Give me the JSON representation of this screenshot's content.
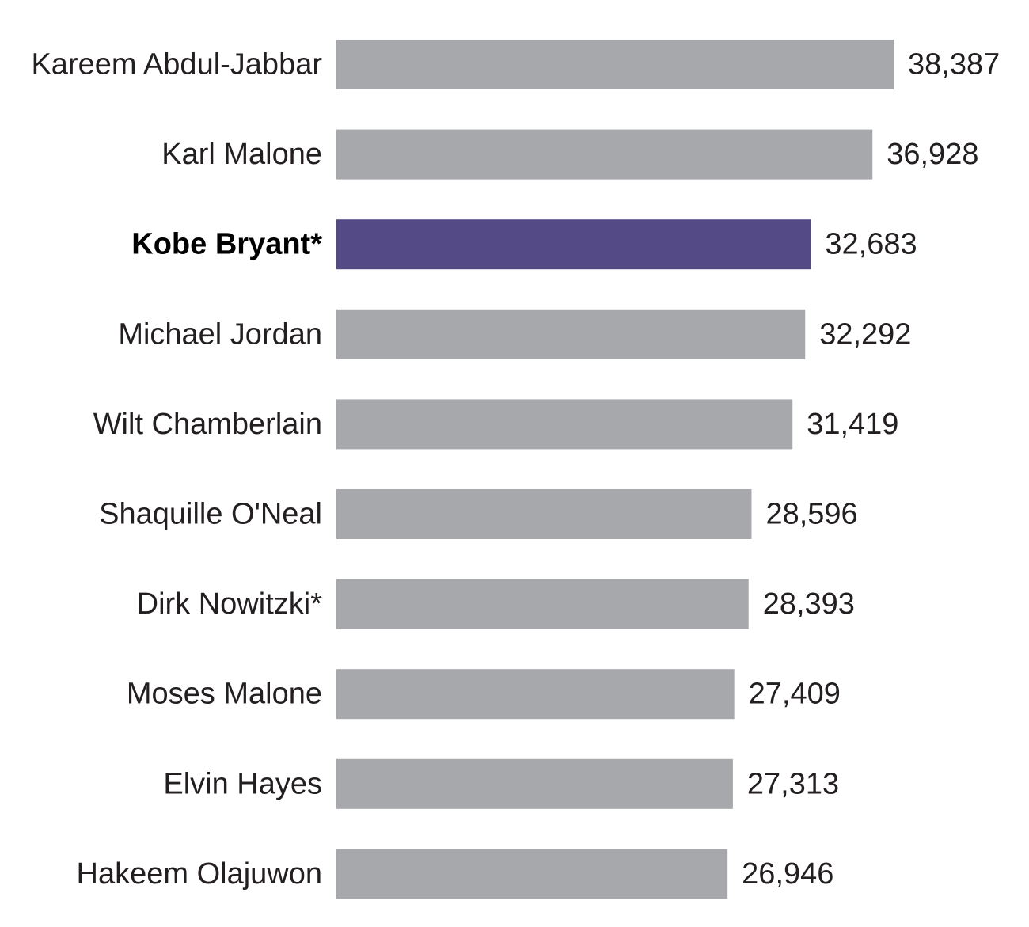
{
  "chart_data": {
    "type": "bar",
    "orientation": "horizontal",
    "categories": [
      "Kareem Abdul-Jabbar",
      "Karl Malone",
      "Kobe Bryant*",
      "Michael Jordan",
      "Wilt Chamberlain",
      "Shaquille O'Neal",
      "Dirk Nowitzki*",
      "Moses Malone",
      "Elvin Hayes",
      "Hakeem Olajuwon"
    ],
    "values": [
      38387,
      36928,
      32683,
      32292,
      31419,
      28596,
      28393,
      27409,
      27313,
      26946
    ],
    "value_labels": [
      "38,387",
      "36,928",
      "32,683",
      "32,292",
      "31,419",
      "28,596",
      "28,393",
      "27,409",
      "27,313",
      "26,946"
    ],
    "highlight": "Kobe Bryant*",
    "xlim": [
      0,
      38387
    ],
    "grid": false,
    "legend": "none",
    "colors": {
      "bar": "#a7a8ab",
      "highlight": "#534a86",
      "text": "#231f20"
    }
  }
}
